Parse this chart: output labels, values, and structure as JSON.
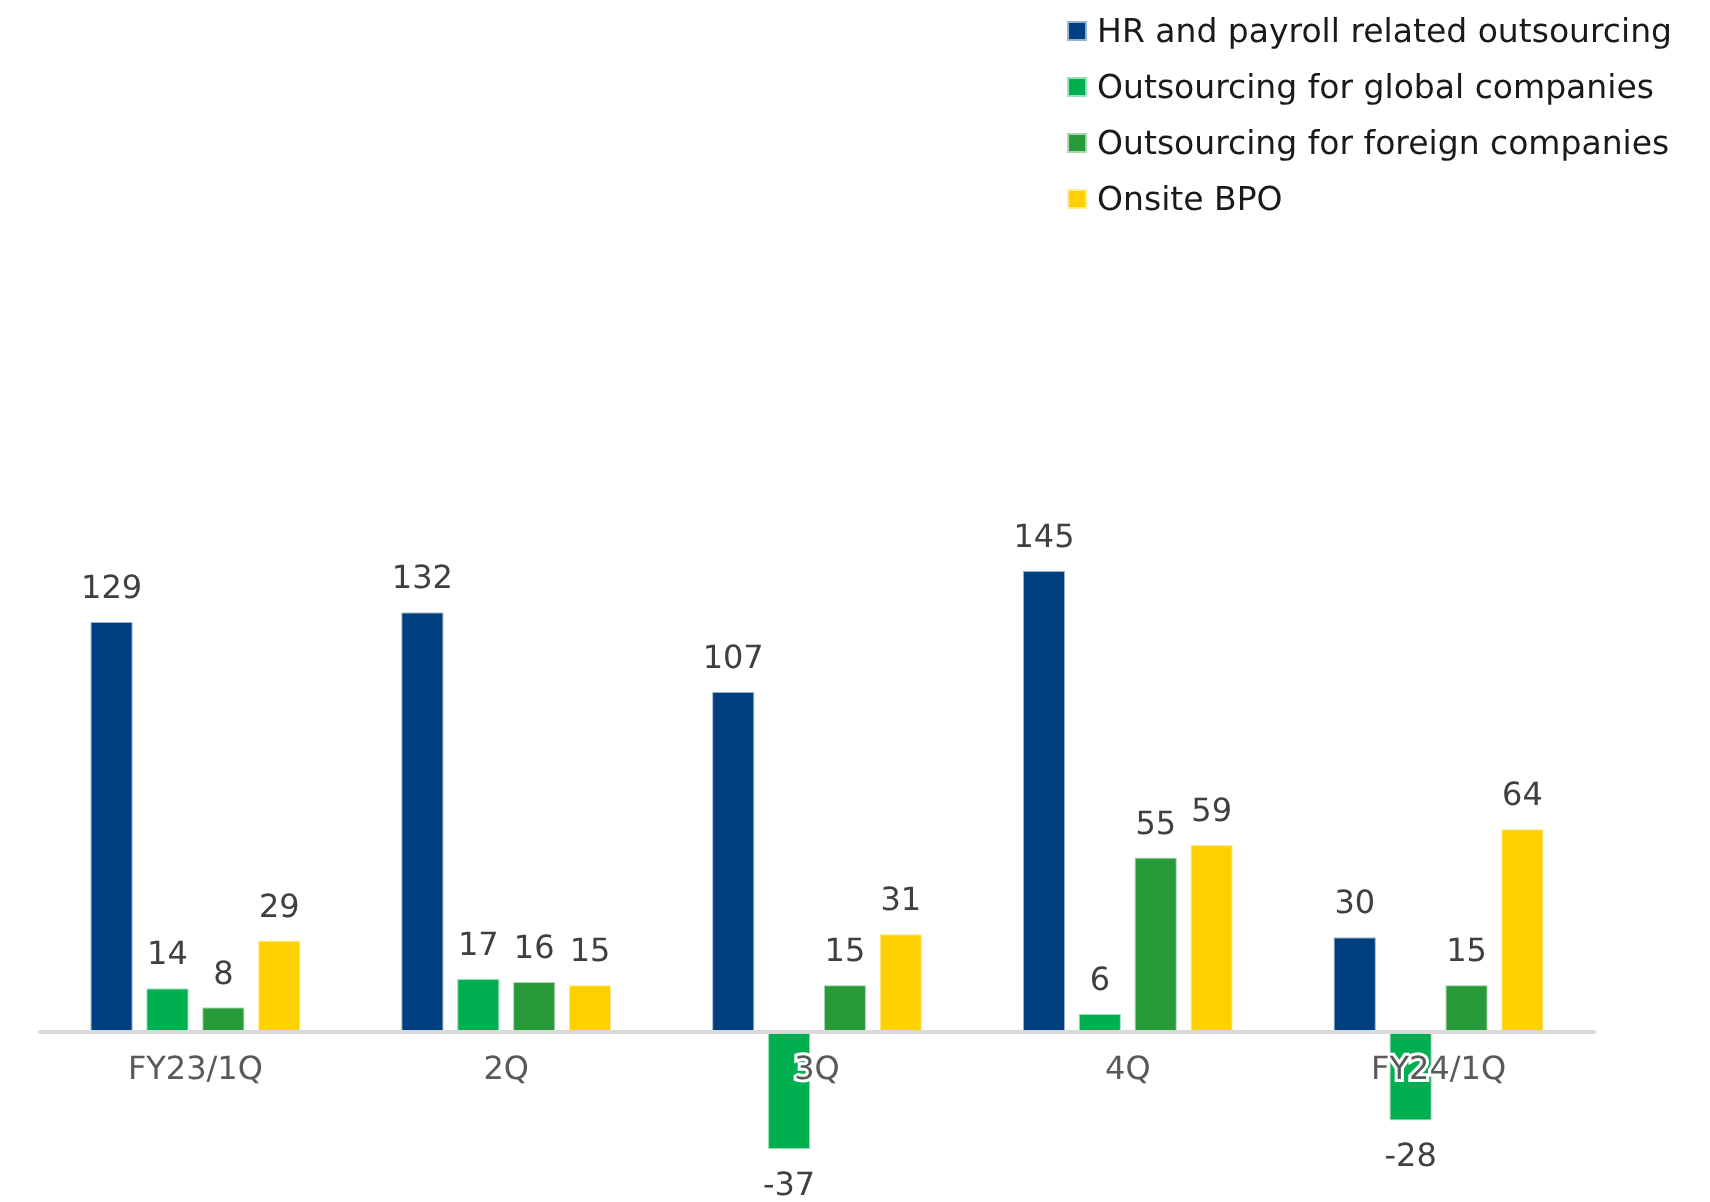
{
  "chart_data": {
    "type": "bar",
    "categories": [
      "FY23/1Q",
      "2Q",
      "3Q",
      "4Q",
      "FY24/1Q"
    ],
    "series": [
      {
        "name": "HR and payroll related outsourcing",
        "color": "#003f7f",
        "values": [
          129,
          132,
          107,
          145,
          30
        ]
      },
      {
        "name": "Outsourcing for global companies",
        "color": "#00b050",
        "values": [
          14,
          17,
          -37,
          6,
          -28
        ]
      },
      {
        "name": "Outsourcing for foreign companies",
        "color": "#299a3a",
        "values": [
          8,
          16,
          15,
          55,
          15
        ]
      },
      {
        "name": "Onsite BPO",
        "color": "#ffd000",
        "values": [
          29,
          15,
          31,
          59,
          64
        ]
      }
    ],
    "data_labels": true,
    "legend": "top right"
  }
}
